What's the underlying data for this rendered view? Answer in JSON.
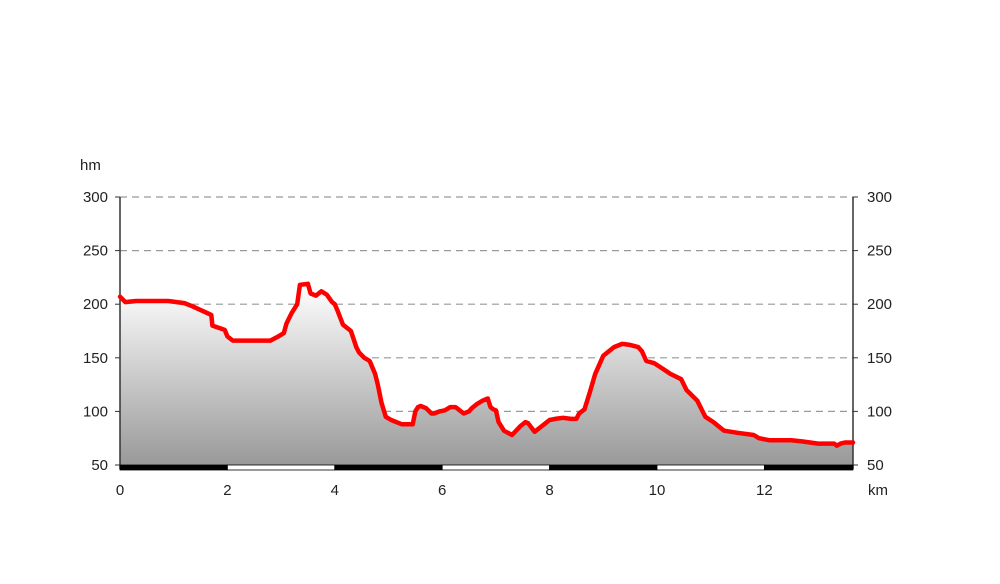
{
  "chart_data": {
    "type": "area",
    "title": "",
    "xlabel": "",
    "ylabel": "",
    "x_unit": "km",
    "y_unit": "hm",
    "xlim": [
      0,
      13.65
    ],
    "ylim": [
      50,
      300
    ],
    "x_ticks": [
      0,
      2,
      4,
      6,
      8,
      10,
      12
    ],
    "x_tick_labels": [
      "0",
      "2",
      "4",
      "6",
      "8",
      "10",
      "12"
    ],
    "y_ticks": [
      50,
      100,
      150,
      200,
      250,
      300
    ],
    "y_tick_labels": [
      "50",
      "100",
      "150",
      "200",
      "250",
      "300"
    ],
    "grid": true,
    "colors": {
      "line": "#ff0000",
      "fill_top": "#ffffff",
      "fill_bottom": "#999999",
      "grid": "#999999",
      "axis": "#333333",
      "scale_bar": "#000000"
    },
    "series": [
      {
        "x": [
          0,
          0.1,
          0.3,
          0.6,
          0.9,
          1.2,
          1.35,
          1.7,
          1.72,
          1.95,
          2.0,
          2.1,
          2.3,
          2.6,
          2.8,
          2.95,
          3.05,
          3.1,
          3.2,
          3.3,
          3.35,
          3.5,
          3.55,
          3.65,
          3.75,
          3.85,
          3.95,
          4.0,
          4.05,
          4.15,
          4.3,
          4.4,
          4.45,
          4.55,
          4.65,
          4.75,
          4.8,
          4.87,
          4.95,
          5.05,
          5.25,
          5.45,
          5.5,
          5.55,
          5.6,
          5.7,
          5.8,
          5.85,
          5.95,
          6.05,
          6.15,
          6.25,
          6.4,
          6.5,
          6.55,
          6.65,
          6.75,
          6.85,
          6.9,
          6.95,
          7.0,
          7.05,
          7.15,
          7.3,
          7.45,
          7.55,
          7.6,
          7.72,
          7.85,
          8.0,
          8.1,
          8.25,
          8.4,
          8.5,
          8.55,
          8.65,
          8.75,
          8.85,
          9.0,
          9.2,
          9.35,
          9.5,
          9.65,
          9.72,
          9.8,
          9.95,
          10.1,
          10.25,
          10.45,
          10.55,
          10.75,
          10.9,
          11.05,
          11.25,
          11.5,
          11.8,
          11.9,
          12.1,
          12.5,
          12.7,
          13.0,
          13.3,
          13.35,
          13.42,
          13.5,
          13.65
        ],
        "y": [
          207,
          202,
          203,
          203,
          203,
          201,
          198,
          190,
          180,
          176,
          170,
          166,
          166,
          166,
          166,
          170,
          173,
          182,
          192,
          200,
          218,
          219,
          210,
          208,
          212,
          209,
          202,
          200,
          194,
          181,
          175,
          160,
          155,
          150,
          147,
          135,
          125,
          108,
          95,
          92,
          88,
          88,
          100,
          104,
          105,
          103,
          98,
          98,
          100,
          101,
          104,
          104,
          98,
          100,
          103,
          107,
          110,
          112,
          104,
          102,
          101,
          90,
          82,
          78,
          86,
          90,
          89,
          81,
          86,
          92,
          93,
          94,
          93,
          93,
          98,
          102,
          118,
          135,
          152,
          160,
          163,
          162,
          160,
          156,
          147,
          145,
          140,
          135,
          130,
          120,
          110,
          95,
          90,
          82,
          80,
          78,
          75,
          73,
          73,
          72,
          70,
          70,
          68,
          70,
          71,
          71
        ]
      }
    ]
  }
}
